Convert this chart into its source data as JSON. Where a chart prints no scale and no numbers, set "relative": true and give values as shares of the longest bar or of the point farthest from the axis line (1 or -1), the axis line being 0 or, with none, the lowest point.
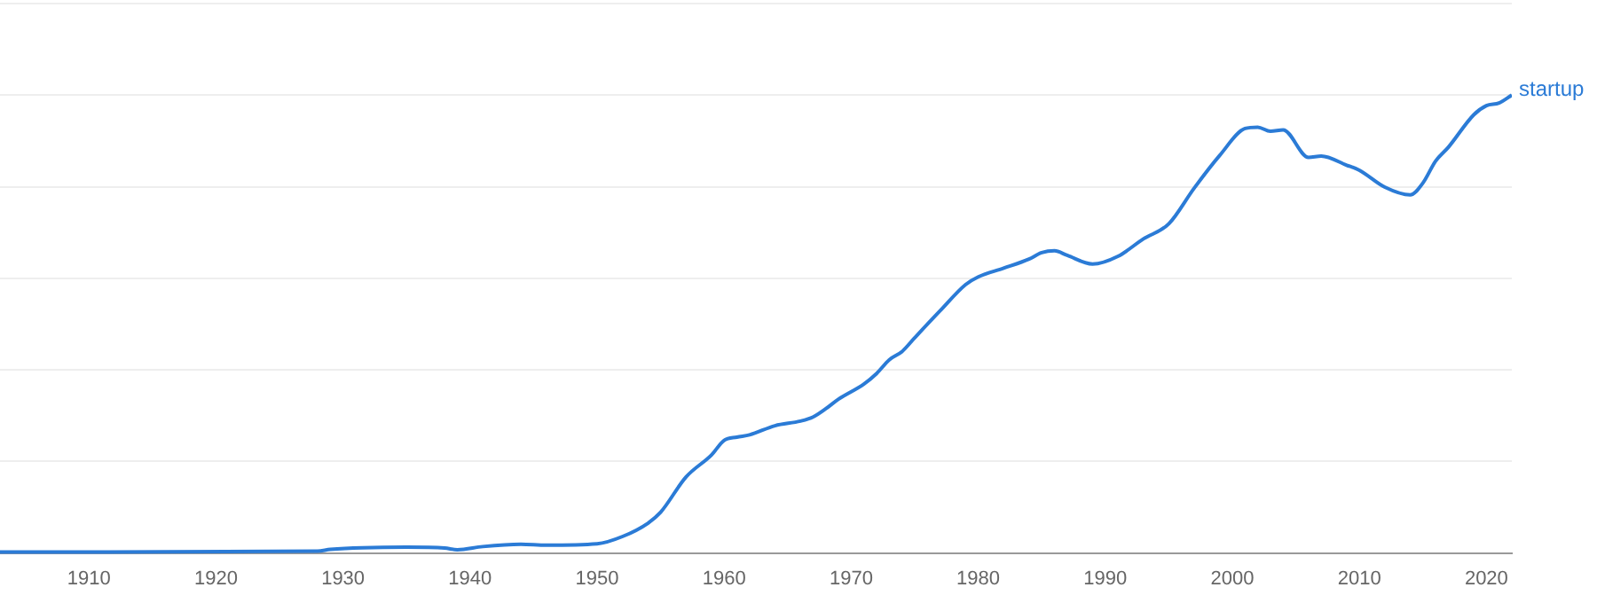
{
  "chart_data": {
    "type": "line",
    "relative": true,
    "grid": "y",
    "legend": false,
    "marker": "none",
    "line_style": "solid",
    "xlim": [
      1903,
      2022
    ],
    "xticks": [
      1910,
      1920,
      1930,
      1940,
      1950,
      1960,
      1970,
      1980,
      1990,
      2000,
      2010,
      2020
    ],
    "series": [
      {
        "name": "startup",
        "color": "#2b7bd6",
        "x": [
          1903,
          1928,
          1929,
          1935,
          1938,
          1939,
          1941,
          1944,
          1946,
          1950,
          1952,
          1954,
          1955,
          1957,
          1959,
          1960,
          1961,
          1962,
          1964,
          1966,
          1967,
          1968,
          1969,
          1971,
          1972,
          1973,
          1974,
          1975,
          1977,
          1979,
          1980,
          1982,
          1984,
          1985,
          1986,
          1987,
          1989,
          1991,
          1993,
          1995,
          1997,
          1999,
          2001,
          2002,
          2003,
          2004,
          2006,
          2007,
          2009,
          2010,
          2012,
          2014,
          2015,
          2016,
          2017,
          2019,
          2020,
          2021,
          2022
        ],
        "values": [
          0.002,
          0.004,
          0.008,
          0.013,
          0.011,
          0.007,
          0.014,
          0.019,
          0.017,
          0.02,
          0.036,
          0.065,
          0.089,
          0.166,
          0.214,
          0.246,
          0.253,
          0.258,
          0.278,
          0.288,
          0.297,
          0.315,
          0.336,
          0.369,
          0.392,
          0.422,
          0.44,
          0.47,
          0.529,
          0.586,
          0.603,
          0.622,
          0.642,
          0.656,
          0.66,
          0.65,
          0.631,
          0.648,
          0.686,
          0.719,
          0.797,
          0.868,
          0.927,
          0.93,
          0.921,
          0.924,
          0.864,
          0.867,
          0.847,
          0.836,
          0.799,
          0.782,
          0.808,
          0.856,
          0.886,
          0.957,
          0.977,
          0.983,
          1.0
        ]
      }
    ]
  }
}
